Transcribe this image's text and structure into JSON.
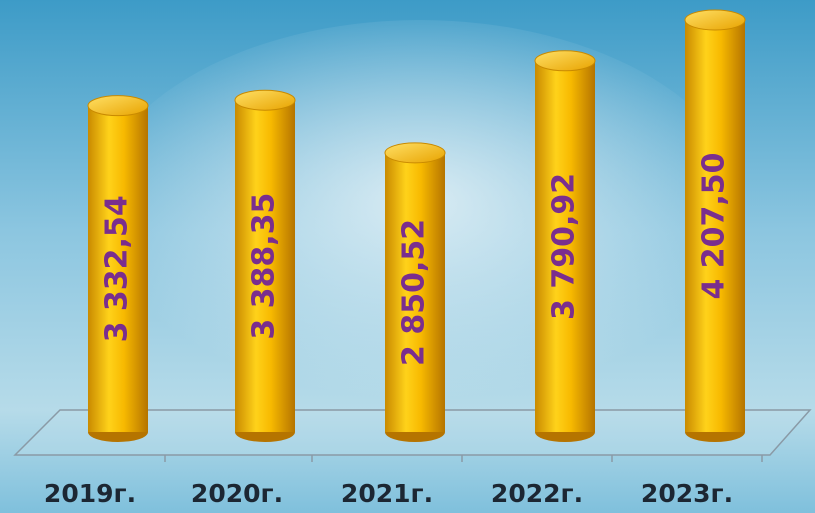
{
  "chart_data": {
    "type": "bar",
    "categories": [
      "2019г.",
      "2020г.",
      "2021г.",
      "2022г.",
      "2023г."
    ],
    "values": [
      3332.54,
      3388.35,
      2850.52,
      3790.92,
      4207.5
    ],
    "value_labels": [
      "3 332,54",
      "3 388,35",
      "2 850,52",
      "3 790,92",
      "4 207,50"
    ],
    "color": "#f5b800"
  }
}
